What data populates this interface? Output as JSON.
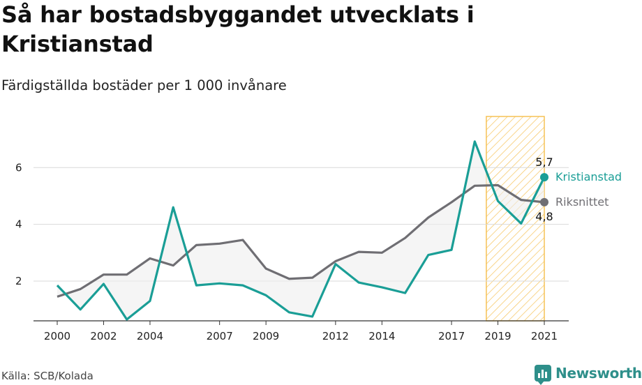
{
  "title": "Så har bostadsbyggandet utvecklats i Kristianstad",
  "subtitle": "Färdigställda bostäder per 1 000 invånare",
  "source": "Källa: SCB/Kolada",
  "brand": "Newsworthy",
  "colors": {
    "kristianstad": "#1a9e96",
    "riksnittet": "#6f6e73",
    "highlight": "#f6c255",
    "gridline": "#d9d9d9",
    "brand": "#2e8f8a"
  },
  "chart_data": {
    "type": "line",
    "x": [
      2000,
      2001,
      2002,
      2003,
      2004,
      2005,
      2006,
      2007,
      2008,
      2009,
      2010,
      2011,
      2012,
      2013,
      2014,
      2015,
      2016,
      2017,
      2018,
      2019,
      2020,
      2021
    ],
    "x_tick_labels": [
      "2000",
      "2002",
      "2004",
      "2007",
      "2009",
      "2012",
      "2014",
      "2017",
      "2019",
      "2021"
    ],
    "y_ticks": [
      "2",
      "4",
      "6"
    ],
    "ylim": [
      0.6,
      7.8
    ],
    "grid": true,
    "highlight_range": [
      2018.5,
      2021
    ],
    "series": [
      {
        "name": "Kristianstad",
        "values": [
          1.85,
          1.0,
          1.9,
          0.65,
          1.3,
          4.6,
          1.85,
          1.92,
          1.85,
          1.5,
          0.9,
          0.75,
          2.6,
          1.95,
          1.78,
          1.58,
          2.92,
          3.1,
          6.92,
          4.82,
          4.03,
          5.66
        ],
        "end_label": "5,7"
      },
      {
        "name": "Riksnittet",
        "values": [
          1.45,
          1.72,
          2.23,
          2.23,
          2.8,
          2.55,
          3.27,
          3.32,
          3.45,
          2.44,
          2.08,
          2.12,
          2.7,
          3.03,
          3.0,
          3.52,
          4.24,
          4.78,
          5.36,
          5.38,
          4.86,
          4.78
        ],
        "end_label": "4,8"
      }
    ]
  }
}
